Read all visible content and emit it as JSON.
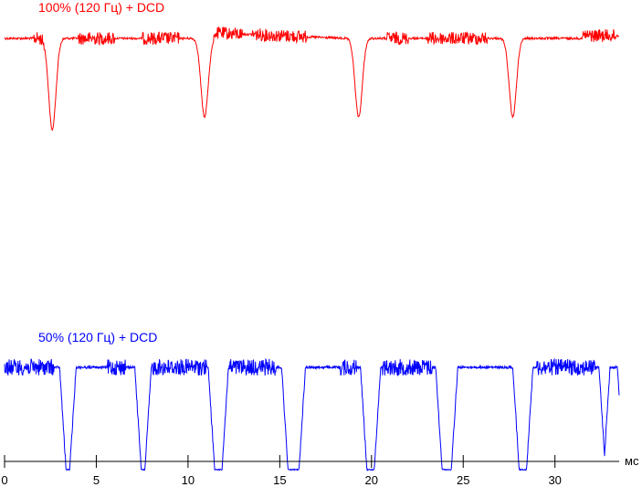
{
  "chart_data": {
    "type": "line",
    "xlabel": "мс",
    "xlim": [
      0,
      33.5
    ],
    "xticks": [
      0,
      5,
      10,
      15,
      20,
      25,
      30
    ],
    "xtick_labels": [
      "0",
      "5",
      "10",
      "15",
      "20",
      "25",
      "30"
    ],
    "grid": false,
    "series": [
      {
        "name": "100% (120 Гц) + DCD",
        "color": "#ff0000",
        "levels": {
          "high": 1.0,
          "dip_low": 0.0
        },
        "dips_ms": [
          2.6,
          10.9,
          19.3,
          27.7
        ],
        "noise_segments_ms": [
          [
            1.6,
            2.2
          ],
          [
            4.0,
            6.0
          ],
          [
            7.5,
            9.5
          ],
          [
            11.5,
            13.0
          ],
          [
            13.5,
            16.5
          ],
          [
            20.8,
            22.0
          ],
          [
            23.0,
            26.3
          ],
          [
            31.5,
            33.4
          ]
        ]
      },
      {
        "name": "50% (120 Гц) + DCD",
        "color": "#0000ff",
        "levels": {
          "high": 1.0,
          "low": 0.0
        },
        "on_intervals_ms": [
          [
            0.0,
            3.0
          ],
          [
            3.9,
            7.1
          ],
          [
            8.0,
            11.1
          ],
          [
            12.2,
            15.1
          ],
          [
            16.4,
            19.4
          ],
          [
            20.5,
            23.5
          ],
          [
            24.7,
            27.7
          ],
          [
            28.8,
            32.4
          ],
          [
            33.0,
            33.4
          ]
        ],
        "noise_segments_ms": [
          [
            0.0,
            2.7
          ],
          [
            5.6,
            6.6
          ],
          [
            8.0,
            11.0
          ],
          [
            12.2,
            14.8
          ],
          [
            18.3,
            19.2
          ],
          [
            20.6,
            23.4
          ],
          [
            29.0,
            32.2
          ]
        ]
      }
    ]
  }
}
